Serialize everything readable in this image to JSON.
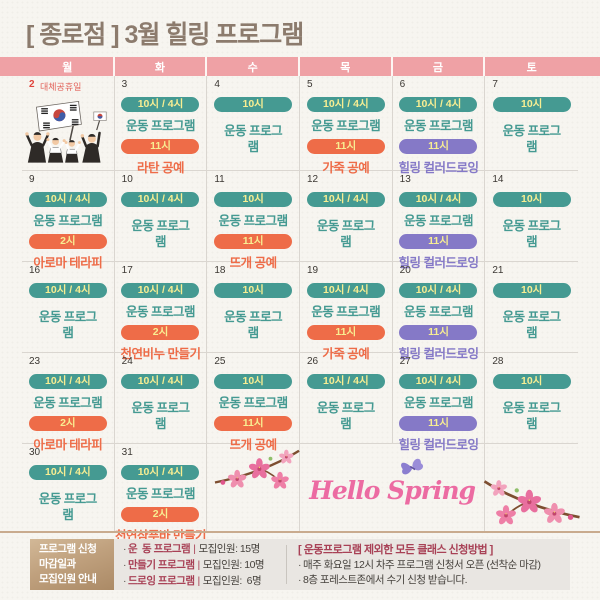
{
  "title": "[ 종로점 ] 3월 힐링 프로그램",
  "weekdays": [
    "월",
    "화",
    "수",
    "목",
    "금",
    "토"
  ],
  "calendar": {
    "weeks": [
      [
        {
          "type": "holiday",
          "date": "2",
          "label": "대체공휴일",
          "illustration": "korean-flag"
        },
        {
          "type": "programs",
          "date": "3",
          "entries": [
            {
              "time": "10시 / 4시",
              "name": "운동 프로그램",
              "color": "teal"
            },
            {
              "time": "11시",
              "name": "라탄 공예",
              "color": "orange"
            }
          ]
        },
        {
          "type": "programs",
          "date": "4",
          "entries": [
            {
              "time": "10시",
              "name": "운동 프로그램",
              "color": "teal",
              "wrap": true
            }
          ]
        },
        {
          "type": "programs",
          "date": "5",
          "entries": [
            {
              "time": "10시 / 4시",
              "name": "운동 프로그램",
              "color": "teal"
            },
            {
              "time": "11시",
              "name": "가죽 공예",
              "color": "orange"
            }
          ]
        },
        {
          "type": "programs",
          "date": "6",
          "entries": [
            {
              "time": "10시 / 4시",
              "name": "운동 프로그램",
              "color": "teal"
            },
            {
              "time": "11시",
              "name": "힐링 컬러드로잉",
              "color": "purple"
            }
          ]
        },
        {
          "type": "programs",
          "date": "7",
          "entries": [
            {
              "time": "10시",
              "name": "운동 프로그램",
              "color": "teal",
              "wrap": true
            }
          ]
        }
      ],
      [
        {
          "type": "programs",
          "date": "9",
          "entries": [
            {
              "time": "10시 / 4시",
              "name": "운동 프로그램",
              "color": "teal"
            },
            {
              "time": "2시",
              "name": "아로마 테라피",
              "color": "orange"
            }
          ]
        },
        {
          "type": "programs",
          "date": "10",
          "entries": [
            {
              "time": "10시 / 4시",
              "name": "운동 프로그램",
              "color": "teal",
              "wrap": true
            }
          ]
        },
        {
          "type": "programs",
          "date": "11",
          "entries": [
            {
              "time": "10시",
              "name": "운동 프로그램",
              "color": "teal"
            },
            {
              "time": "11시",
              "name": "뜨개 공예",
              "color": "orange"
            }
          ]
        },
        {
          "type": "programs",
          "date": "12",
          "entries": [
            {
              "time": "10시 / 4시",
              "name": "운동 프로그램",
              "color": "teal",
              "wrap": true
            }
          ]
        },
        {
          "type": "programs",
          "date": "13",
          "entries": [
            {
              "time": "10시 / 4시",
              "name": "운동 프로그램",
              "color": "teal"
            },
            {
              "time": "11시",
              "name": "힐링 컬러드로잉",
              "color": "purple"
            }
          ]
        },
        {
          "type": "programs",
          "date": "14",
          "entries": [
            {
              "time": "10시",
              "name": "운동 프로그램",
              "color": "teal",
              "wrap": true
            }
          ]
        }
      ],
      [
        {
          "type": "programs",
          "date": "16",
          "entries": [
            {
              "time": "10시 / 4시",
              "name": "운동 프로그램",
              "color": "teal",
              "wrap": true
            }
          ]
        },
        {
          "type": "programs",
          "date": "17",
          "entries": [
            {
              "time": "10시 / 4시",
              "name": "운동 프로그램",
              "color": "teal"
            },
            {
              "time": "2시",
              "name": "천연비누 만들기",
              "color": "orange"
            }
          ]
        },
        {
          "type": "programs",
          "date": "18",
          "entries": [
            {
              "time": "10시",
              "name": "운동 프로그램",
              "color": "teal",
              "wrap": true
            }
          ]
        },
        {
          "type": "programs",
          "date": "19",
          "entries": [
            {
              "time": "10시 / 4시",
              "name": "운동 프로그램",
              "color": "teal"
            },
            {
              "time": "11시",
              "name": "가죽 공예",
              "color": "orange"
            }
          ]
        },
        {
          "type": "programs",
          "date": "20",
          "entries": [
            {
              "time": "10시 / 4시",
              "name": "운동 프로그램",
              "color": "teal"
            },
            {
              "time": "11시",
              "name": "힐링 컬러드로잉",
              "color": "purple"
            }
          ]
        },
        {
          "type": "programs",
          "date": "21",
          "entries": [
            {
              "time": "10시",
              "name": "운동 프로그램",
              "color": "teal",
              "wrap": true
            }
          ]
        }
      ],
      [
        {
          "type": "programs",
          "date": "23",
          "entries": [
            {
              "time": "10시 / 4시",
              "name": "운동 프로그램",
              "color": "teal"
            },
            {
              "time": "2시",
              "name": "아로마 테라피",
              "color": "orange"
            }
          ]
        },
        {
          "type": "programs",
          "date": "24",
          "entries": [
            {
              "time": "10시 / 4시",
              "name": "운동 프로그램",
              "color": "teal",
              "wrap": true
            }
          ]
        },
        {
          "type": "programs",
          "date": "25",
          "entries": [
            {
              "time": "10시",
              "name": "운동 프로그램",
              "color": "teal"
            },
            {
              "time": "11시",
              "name": "뜨개 공예",
              "color": "orange"
            }
          ]
        },
        {
          "type": "programs",
          "date": "26",
          "entries": [
            {
              "time": "10시 / 4시",
              "name": "운동 프로그램",
              "color": "teal",
              "wrap": true
            }
          ]
        },
        {
          "type": "programs",
          "date": "27",
          "entries": [
            {
              "time": "10시 / 4시",
              "name": "운동 프로그램",
              "color": "teal"
            },
            {
              "time": "11시",
              "name": "힐링 컬러드로잉",
              "color": "purple"
            }
          ]
        },
        {
          "type": "programs",
          "date": "28",
          "entries": [
            {
              "time": "10시",
              "name": "운동 프로그램",
              "color": "teal",
              "wrap": true
            }
          ]
        }
      ],
      [
        {
          "type": "programs",
          "date": "30",
          "entries": [
            {
              "time": "10시 / 4시",
              "name": "운동 프로그램",
              "color": "teal",
              "wrap": true
            }
          ]
        },
        {
          "type": "programs",
          "date": "31",
          "entries": [
            {
              "time": "10시 / 4시",
              "name": "운동 프로그램",
              "color": "teal"
            },
            {
              "time": "2시",
              "name": "천연샴푸바 만들기",
              "color": "orange"
            }
          ]
        },
        {
          "type": "decor",
          "decor": "blossom-small"
        },
        {
          "type": "decor",
          "decor": "hello-spring",
          "span": 2
        },
        {
          "type": "decor",
          "decor": "blossom-large"
        }
      ]
    ]
  },
  "decor": {
    "hello_spring": "Hello Spring"
  },
  "footer": {
    "bullet": "·",
    "separator": "|",
    "info_title_lines": [
      "프로그램 신청",
      "마감일과",
      "모집인원 안내"
    ],
    "capacity_list": [
      {
        "name": "운  동 프로그램",
        "value": "모집인원: 15명"
      },
      {
        "name": "만들기 프로그램",
        "value": "모집인원: 10명"
      },
      {
        "name": "드로잉 프로그램",
        "value": "모집인원:  6명"
      }
    ],
    "howto_title": "[ 운동프로그램 제외한 모든 클래스 신청방법 ]",
    "howto_lines": [
      "매주 화요일 12시 차주 프로그램 신청서 오픈 (선착순 마감)",
      "8층 포레스트존에서 수기 신청 받습니다."
    ]
  },
  "colors": {
    "header_pink": "#efa1a5",
    "teal": "#459a92",
    "orange": "#ee6c48",
    "purple": "#8579c7",
    "badge_text_yellow": "#f8ee92",
    "accent_maroon": "#a84156",
    "title_brown": "#8c7b6d",
    "holiday_red": "#e0453c",
    "spring_pink": "#ec6ba2",
    "tan_line": "#c9ab8e"
  }
}
